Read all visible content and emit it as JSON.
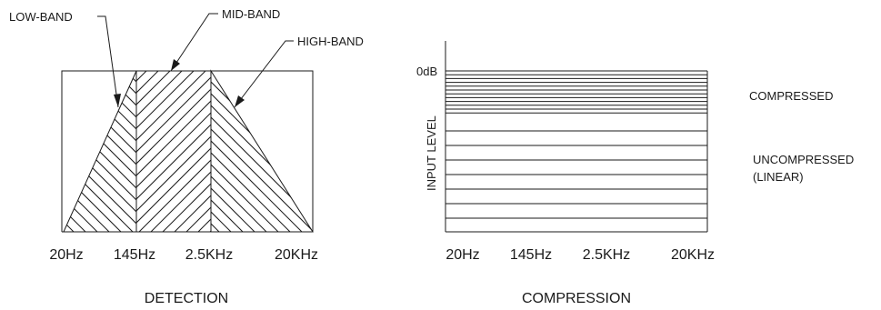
{
  "detection": {
    "caption": "DETECTION",
    "bands": [
      "LOW-BAND",
      "MID-BAND",
      "HIGH-BAND"
    ],
    "ticks": [
      "20Hz",
      "145Hz",
      "2.5KHz",
      "20KHz"
    ]
  },
  "compression": {
    "caption": "COMPRESSION",
    "level_label": "0dB",
    "axis_label": "INPUT LEVEL",
    "compressed_label": "COMPRESSED",
    "uncompressed_label": "UNCOMPRESSED",
    "linear_label": "(LINEAR)",
    "ticks": [
      "20Hz",
      "145Hz",
      "2.5KHz",
      "20KHz"
    ]
  }
}
